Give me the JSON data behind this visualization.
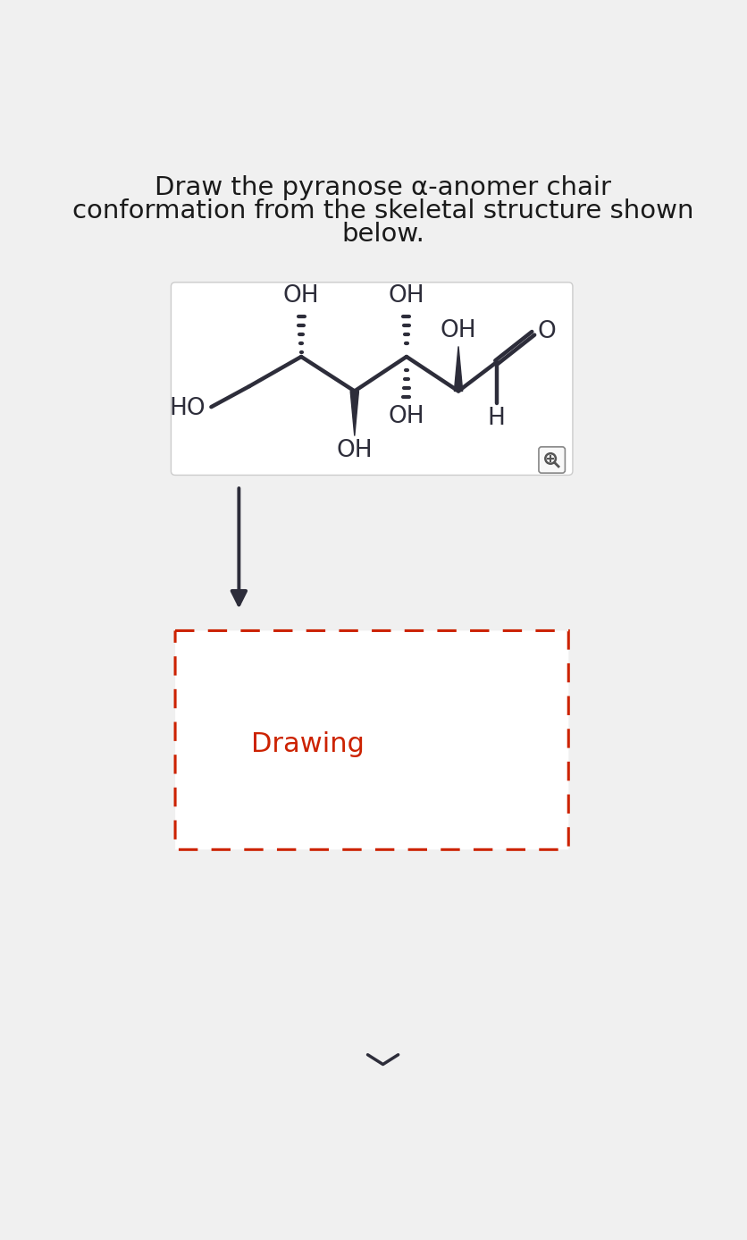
{
  "title_line1": "Draw the pyranose α-anomer chair",
  "title_line2": "conformation from the skeletal structure shown",
  "title_line3": "below.",
  "bg_color": "#f0f0f0",
  "box_bg": "#ffffff",
  "box_border": "#cccccc",
  "molecule_color": "#2d2d3a",
  "drawing_box_color": "#cc2200",
  "drawing_text": "Drawing",
  "drawing_text_color": "#cc2200",
  "arrow_color": "#2d2d3a",
  "chevron_color": "#2d2d3a",
  "mag_border": "#888888",
  "mag_bg": "#f8f8f8"
}
